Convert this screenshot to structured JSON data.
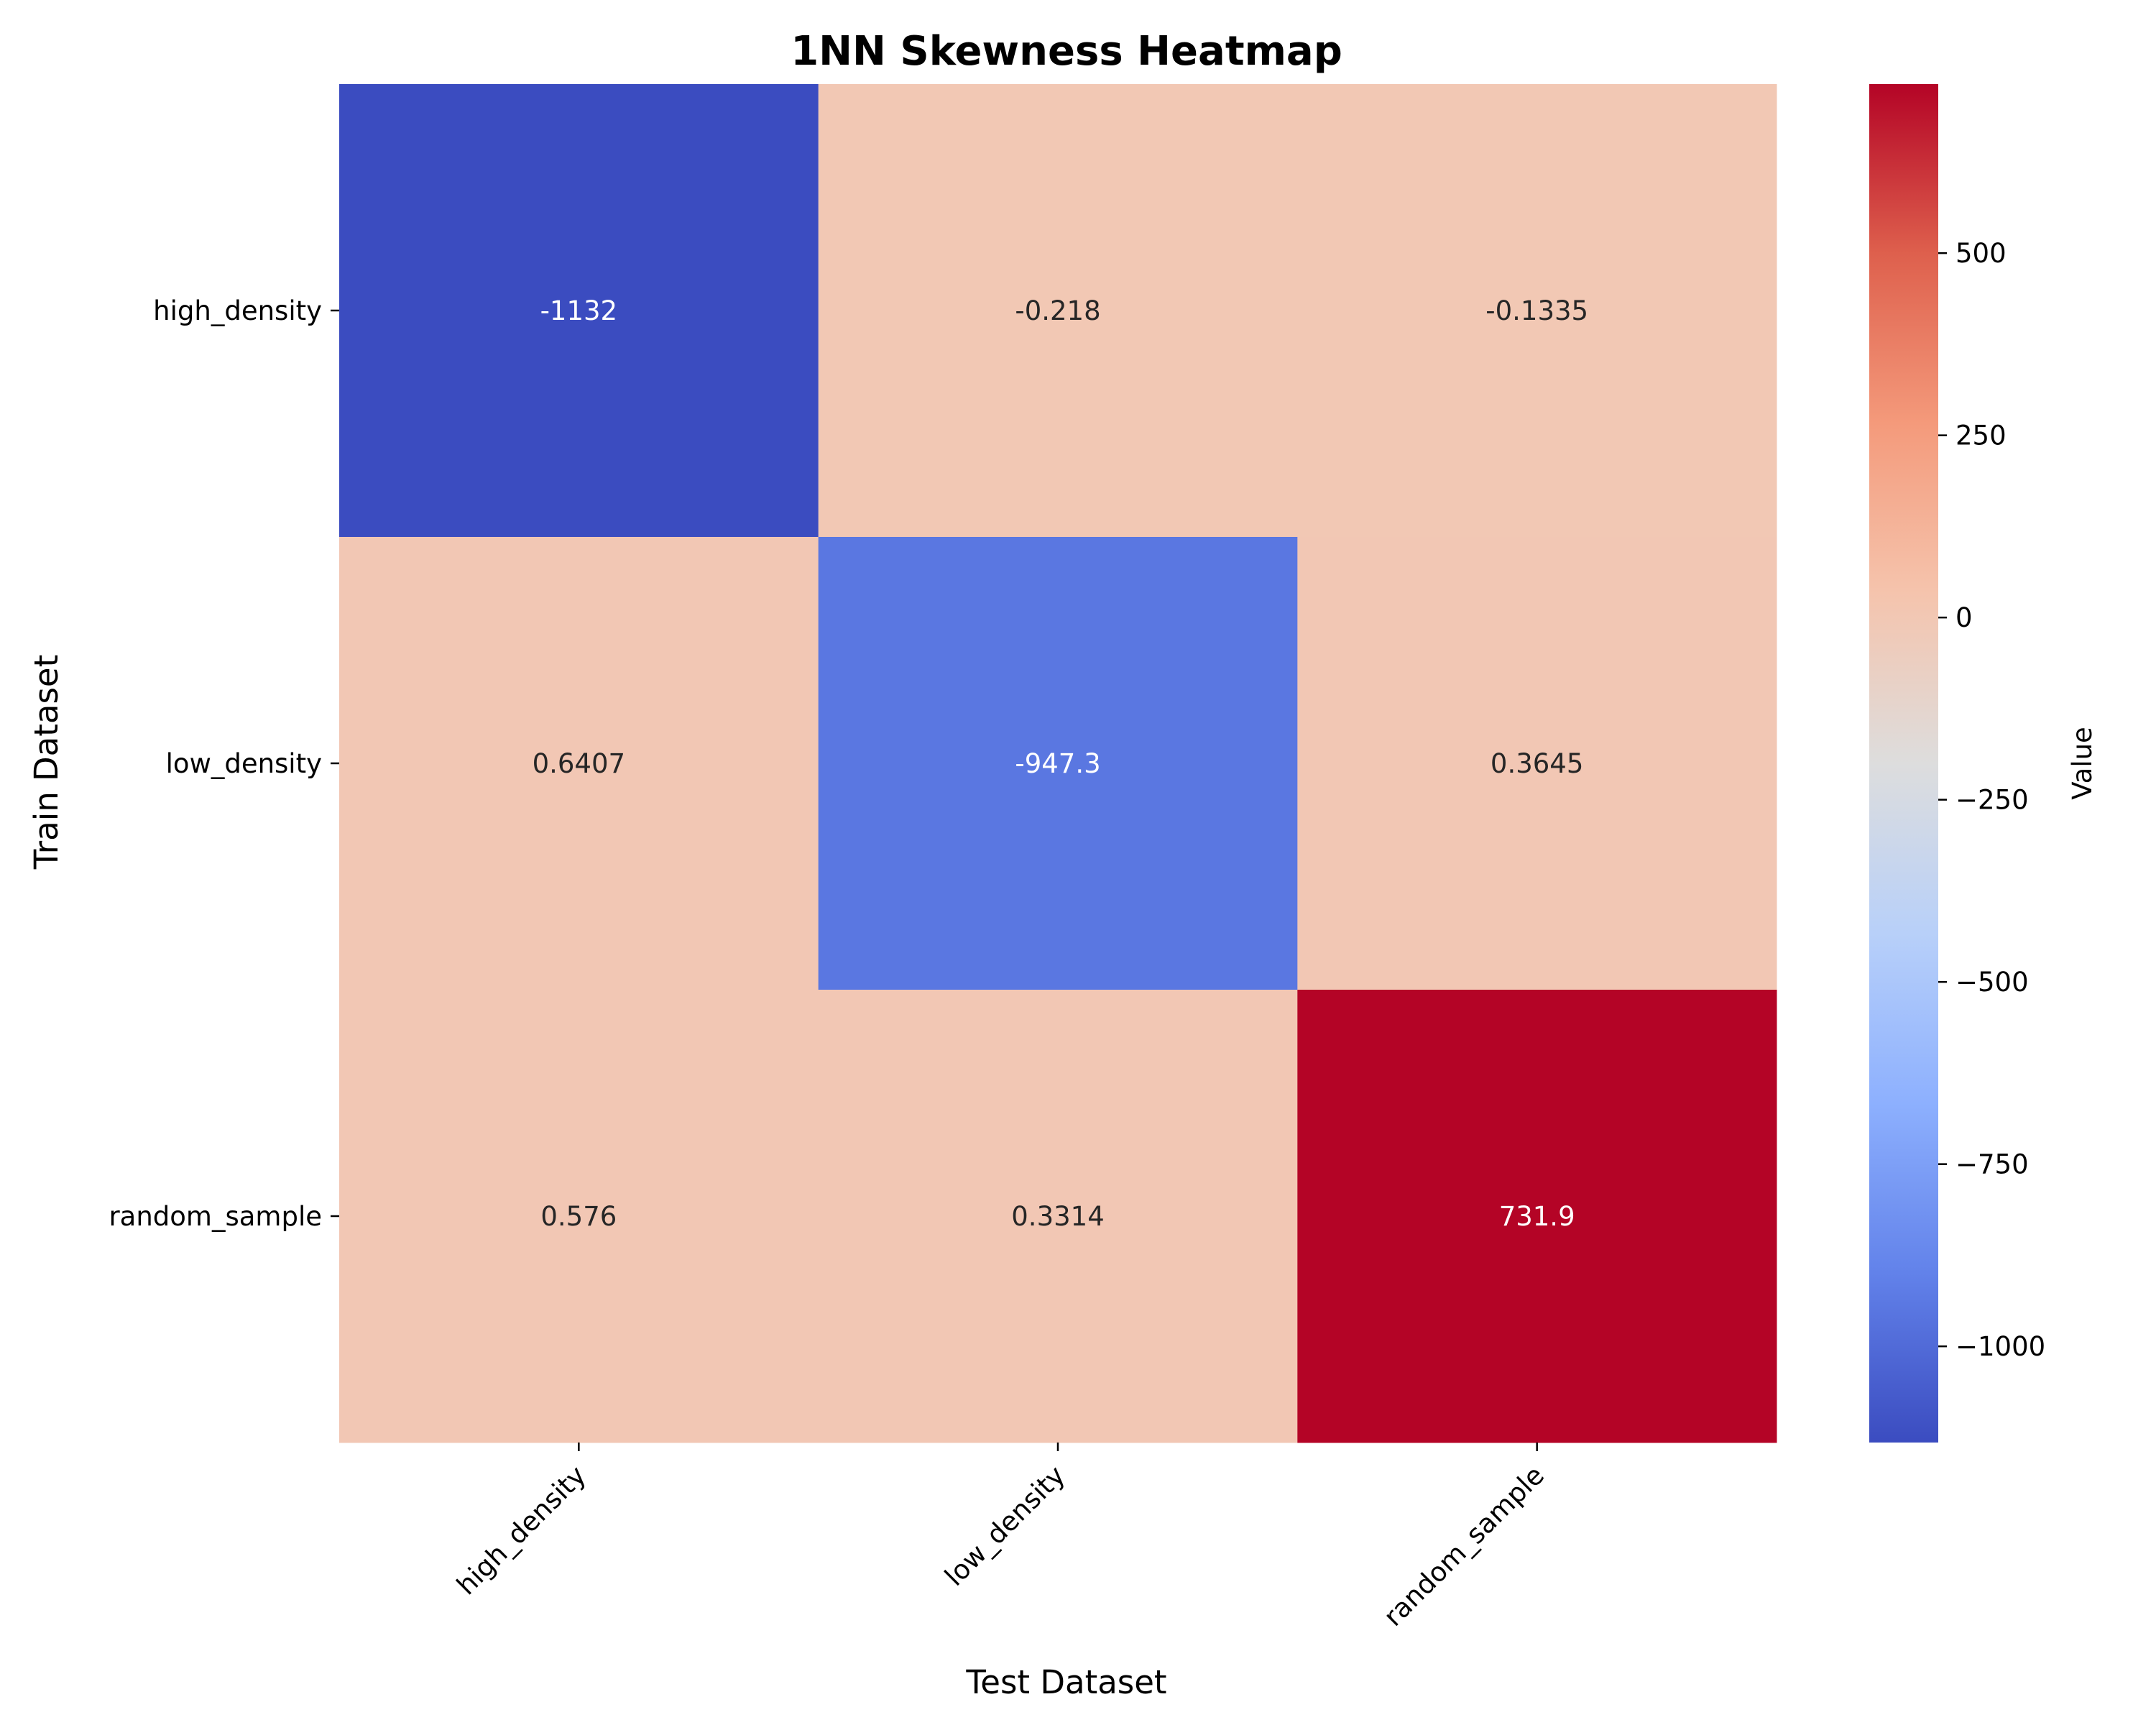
{
  "chart_data": {
    "type": "heatmap",
    "title": "1NN Skewness Heatmap",
    "xlabel": "Test Dataset",
    "ylabel": "Train Dataset",
    "x_categories": [
      "high_density",
      "low_density",
      "random_sample"
    ],
    "y_categories": [
      "high_density",
      "low_density",
      "random_sample"
    ],
    "values": [
      [
        -1132,
        -0.218,
        -0.1335
      ],
      [
        0.6407,
        -947.3,
        0.3645
      ],
      [
        0.576,
        0.3314,
        731.9
      ]
    ],
    "value_labels": [
      [
        "-1132",
        "-0.218",
        "-0.1335"
      ],
      [
        "0.6407",
        "-947.3",
        "0.3645"
      ],
      [
        "0.576",
        "0.3314",
        "731.9"
      ]
    ],
    "colormap": "coolwarm",
    "vmin": -1132,
    "vmax": 731.9,
    "colorbar": {
      "label": "Value",
      "ticks": [
        500,
        250,
        0,
        -250,
        -500,
        -750,
        -1000
      ],
      "tick_labels": [
        "500",
        "250",
        "0",
        "−250",
        "−500",
        "−750",
        "−1000"
      ]
    },
    "grid": false,
    "legend": "colorbar-right"
  }
}
